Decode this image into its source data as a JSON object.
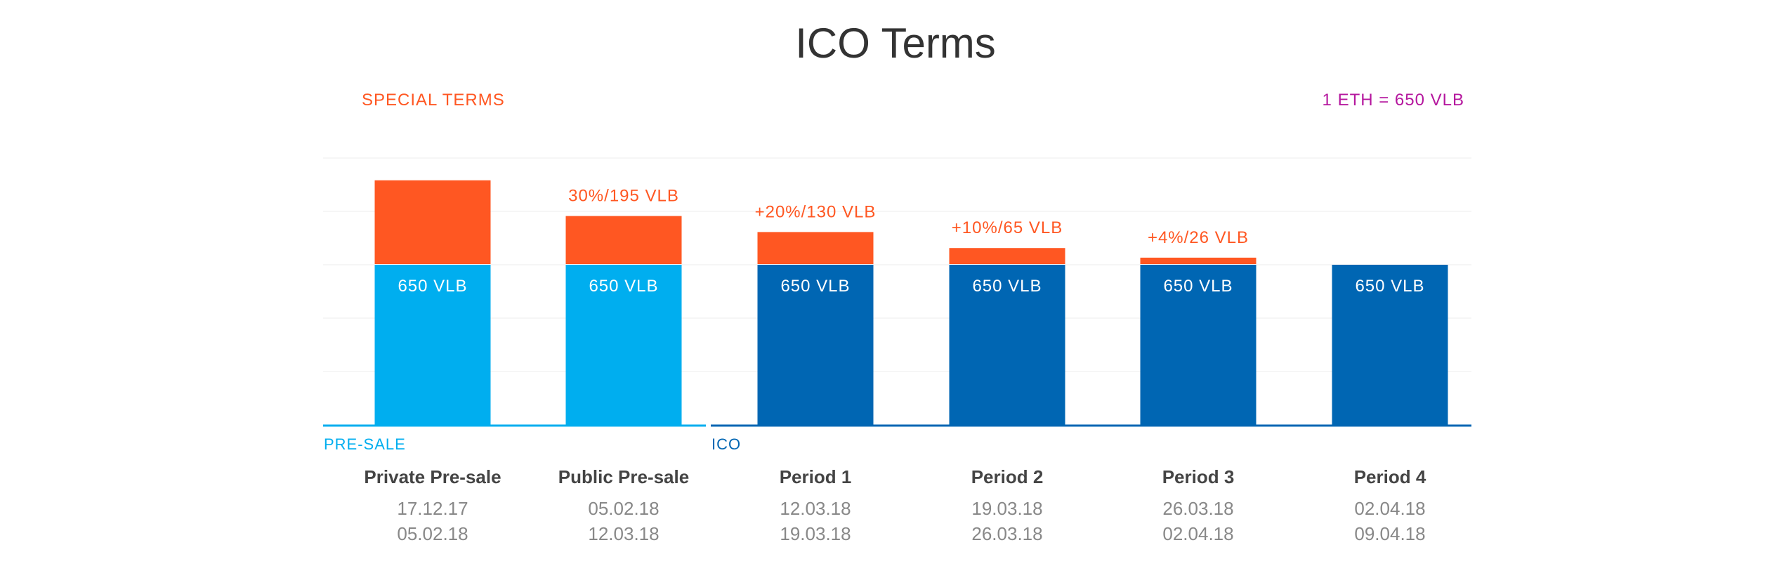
{
  "chart_data": {
    "type": "bar",
    "title": "ICO Terms",
    "special_terms_label": "SPECIAL TERMS",
    "rate_label": "1 ETH = 650 VLB",
    "groups": [
      {
        "name": "PRE-SALE",
        "color": "#00AEEF"
      },
      {
        "name": "ICO",
        "color": "#0066B3"
      }
    ],
    "categories": [
      "Private Pre-sale",
      "Public Pre-sale",
      "Period 1",
      "Period 2",
      "Period 3",
      "Period 4"
    ],
    "dates": [
      [
        "17.12.17",
        "05.02.18"
      ],
      [
        "05.02.18",
        "12.03.18"
      ],
      [
        "12.03.18",
        "19.03.18"
      ],
      [
        "19.03.18",
        "26.03.18"
      ],
      [
        "26.03.18",
        "02.04.18"
      ],
      [
        "02.04.18",
        "09.04.18"
      ]
    ],
    "group_index": [
      0,
      0,
      1,
      1,
      1,
      1
    ],
    "base_values": [
      650,
      650,
      650,
      650,
      650,
      650
    ],
    "base_labels": [
      "650 VLB",
      "650 VLB",
      "650 VLB",
      "650 VLB",
      "650 VLB",
      "650 VLB"
    ],
    "bonus_values": [
      null,
      195,
      130,
      65,
      26,
      0
    ],
    "bonus_labels": [
      "",
      "30%/195 VLB",
      "+20%/130 VLB",
      "+10%/65 VLB",
      "+4%/26 VLB",
      ""
    ],
    "bonus_color": "#FF5722",
    "rate_color": "#B5179E",
    "grid": true
  }
}
